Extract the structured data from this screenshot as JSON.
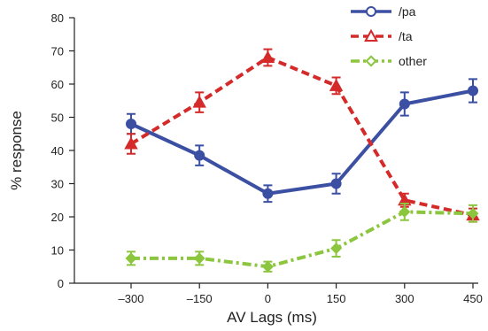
{
  "chart_data": {
    "type": "line",
    "xlabel": "AV Lags (ms)",
    "ylabel": "% response",
    "x": [
      -300,
      -150,
      0,
      150,
      300,
      450
    ],
    "x_tick_labels": [
      "–300",
      "–150",
      "0",
      "150",
      "300",
      "450"
    ],
    "ylim": [
      0,
      80
    ],
    "y_ticks": [
      0,
      10,
      20,
      30,
      40,
      50,
      60,
      70,
      80
    ],
    "grid": false,
    "legend_position": "top-right",
    "series": [
      {
        "name": "/pa",
        "color": "#3b4fa3",
        "line_style": "solid",
        "marker": "circle",
        "values": [
          48,
          38.5,
          27,
          30,
          54,
          58
        ],
        "errors": [
          3,
          3,
          2.5,
          3,
          3.5,
          3.5
        ]
      },
      {
        "name": "/ta",
        "color": "#d42a2a",
        "line_style": "dashed",
        "marker": "triangle",
        "values": [
          42,
          54.5,
          68,
          59.5,
          25,
          20.5
        ],
        "errors": [
          3,
          3,
          2.5,
          2.5,
          2,
          2
        ]
      },
      {
        "name": "other",
        "color": "#8cc63f",
        "line_style": "dash-dot",
        "marker": "diamond",
        "values": [
          7.5,
          7.5,
          5,
          10.5,
          21.5,
          21
        ],
        "errors": [
          2,
          2,
          1.5,
          2.5,
          2.5,
          2.5
        ]
      }
    ]
  }
}
